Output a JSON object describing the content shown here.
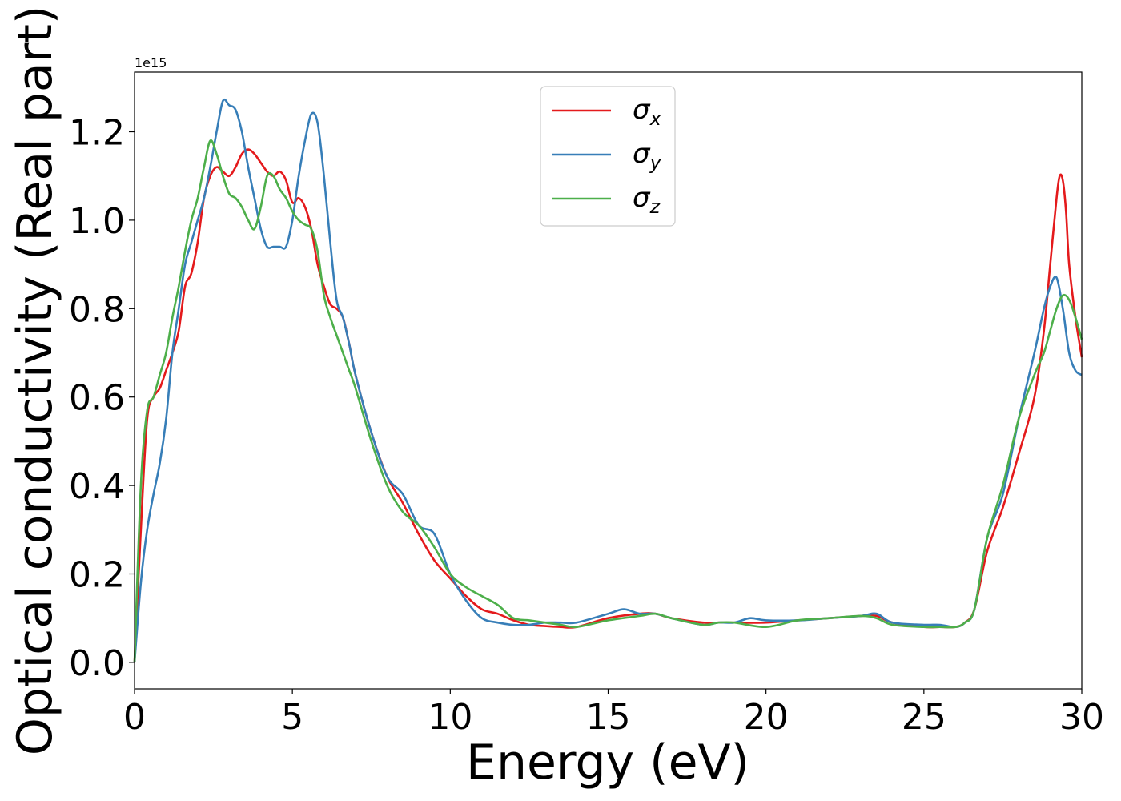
{
  "chart_data": {
    "type": "line",
    "title": "",
    "xlabel": "Energy (eV)",
    "ylabel": "Optical conductivity (Real part)",
    "y_offset_label": "1e15",
    "xlim": [
      0,
      30
    ],
    "ylim": [
      -0.06,
      1.335
    ],
    "x_ticks": [
      "0",
      "5",
      "10",
      "15",
      "20",
      "25",
      "30"
    ],
    "x_tick_values": [
      0,
      5,
      10,
      15,
      20,
      25,
      30
    ],
    "y_ticks": [
      "0.0",
      "0.2",
      "0.4",
      "0.6",
      "0.8",
      "1.0",
      "1.2"
    ],
    "y_tick_values": [
      0.0,
      0.2,
      0.4,
      0.6,
      0.8,
      1.0,
      1.2
    ],
    "grid": false,
    "legend_position": "top-center",
    "series": [
      {
        "name": "σ_x",
        "symbol": "σ",
        "sub": "x",
        "color": "#e41a1c",
        "x": [
          0,
          0.2,
          0.4,
          0.6,
          0.8,
          1.0,
          1.2,
          1.4,
          1.6,
          1.8,
          2.0,
          2.2,
          2.4,
          2.6,
          2.8,
          3.0,
          3.2,
          3.4,
          3.6,
          3.8,
          4.0,
          4.2,
          4.4,
          4.6,
          4.8,
          5.0,
          5.2,
          5.4,
          5.6,
          5.8,
          6.0,
          6.2,
          6.4,
          6.6,
          6.8,
          7.0,
          7.5,
          8.0,
          8.5,
          9.0,
          9.5,
          10.0,
          10.5,
          11.0,
          11.5,
          12.0,
          12.5,
          13.0,
          13.5,
          14.0,
          15.0,
          16.0,
          16.5,
          17.0,
          18.0,
          18.5,
          19.0,
          20.0,
          21.0,
          22.0,
          23.0,
          23.5,
          24.0,
          25.0,
          25.5,
          26.0,
          26.3,
          26.6,
          27.0,
          27.5,
          28.0,
          28.5,
          28.8,
          29.0,
          29.2,
          29.3,
          29.4,
          29.5,
          29.6,
          29.8,
          30.0
        ],
        "y": [
          0,
          0.3,
          0.55,
          0.6,
          0.62,
          0.66,
          0.7,
          0.75,
          0.85,
          0.88,
          0.95,
          1.05,
          1.1,
          1.12,
          1.11,
          1.1,
          1.12,
          1.15,
          1.16,
          1.15,
          1.13,
          1.11,
          1.1,
          1.11,
          1.09,
          1.04,
          1.05,
          1.03,
          0.98,
          0.9,
          0.85,
          0.81,
          0.8,
          0.78,
          0.72,
          0.65,
          0.52,
          0.42,
          0.36,
          0.29,
          0.23,
          0.19,
          0.15,
          0.12,
          0.11,
          0.095,
          0.085,
          0.082,
          0.08,
          0.08,
          0.1,
          0.11,
          0.11,
          0.1,
          0.09,
          0.09,
          0.09,
          0.09,
          0.095,
          0.1,
          0.105,
          0.105,
          0.09,
          0.08,
          0.08,
          0.08,
          0.09,
          0.12,
          0.25,
          0.35,
          0.47,
          0.6,
          0.75,
          0.9,
          1.05,
          1.1,
          1.09,
          1.02,
          0.9,
          0.78,
          0.69
        ]
      },
      {
        "name": "σ_y",
        "symbol": "σ",
        "sub": "y",
        "color": "#377eb8",
        "x": [
          0,
          0.2,
          0.4,
          0.6,
          0.8,
          1.0,
          1.2,
          1.4,
          1.6,
          1.8,
          2.0,
          2.2,
          2.4,
          2.6,
          2.8,
          3.0,
          3.2,
          3.4,
          3.6,
          3.8,
          4.0,
          4.2,
          4.4,
          4.6,
          4.8,
          5.0,
          5.2,
          5.4,
          5.6,
          5.8,
          6.0,
          6.2,
          6.4,
          6.6,
          6.8,
          7.0,
          7.5,
          8.0,
          8.5,
          9.0,
          9.5,
          10.0,
          10.5,
          11.0,
          11.5,
          12.0,
          12.5,
          13.0,
          13.5,
          14.0,
          15.0,
          15.5,
          16.0,
          16.5,
          17.0,
          18.0,
          18.5,
          19.0,
          19.5,
          20.0,
          21.0,
          22.0,
          23.0,
          23.5,
          24.0,
          25.0,
          25.5,
          26.0,
          26.3,
          26.6,
          27.0,
          27.5,
          28.0,
          28.5,
          28.8,
          29.0,
          29.2,
          29.4,
          29.6,
          29.8,
          30.0
        ],
        "y": [
          0,
          0.18,
          0.3,
          0.38,
          0.45,
          0.55,
          0.7,
          0.8,
          0.9,
          0.95,
          1.0,
          1.05,
          1.12,
          1.2,
          1.27,
          1.26,
          1.25,
          1.2,
          1.12,
          1.05,
          0.98,
          0.94,
          0.94,
          0.94,
          0.94,
          1.0,
          1.1,
          1.18,
          1.24,
          1.22,
          1.1,
          0.95,
          0.82,
          0.78,
          0.72,
          0.65,
          0.52,
          0.42,
          0.38,
          0.31,
          0.29,
          0.2,
          0.14,
          0.1,
          0.09,
          0.085,
          0.085,
          0.09,
          0.09,
          0.09,
          0.11,
          0.12,
          0.11,
          0.11,
          0.1,
          0.085,
          0.09,
          0.09,
          0.1,
          0.095,
          0.095,
          0.1,
          0.105,
          0.11,
          0.09,
          0.085,
          0.085,
          0.08,
          0.09,
          0.12,
          0.28,
          0.38,
          0.55,
          0.7,
          0.8,
          0.85,
          0.87,
          0.8,
          0.7,
          0.66,
          0.65
        ]
      },
      {
        "name": "σ_z",
        "symbol": "σ",
        "sub": "z",
        "color": "#4daf4a",
        "x": [
          0,
          0.2,
          0.4,
          0.6,
          0.8,
          1.0,
          1.2,
          1.4,
          1.6,
          1.8,
          2.0,
          2.2,
          2.4,
          2.6,
          2.8,
          3.0,
          3.2,
          3.4,
          3.6,
          3.8,
          4.0,
          4.2,
          4.4,
          4.6,
          4.8,
          5.0,
          5.2,
          5.4,
          5.6,
          5.8,
          6.0,
          6.2,
          6.4,
          6.6,
          6.8,
          7.0,
          7.5,
          8.0,
          8.5,
          9.0,
          9.5,
          10.0,
          10.5,
          11.0,
          11.5,
          12.0,
          12.5,
          13.0,
          13.5,
          14.0,
          15.0,
          16.0,
          16.5,
          17.0,
          18.0,
          18.5,
          19.0,
          20.0,
          21.0,
          22.0,
          23.0,
          23.5,
          24.0,
          25.0,
          25.5,
          26.0,
          26.3,
          26.6,
          27.0,
          27.5,
          28.0,
          28.5,
          28.8,
          29.0,
          29.2,
          29.4,
          29.6,
          29.8,
          30.0
        ],
        "y": [
          0,
          0.4,
          0.57,
          0.6,
          0.65,
          0.7,
          0.78,
          0.85,
          0.93,
          1.0,
          1.05,
          1.12,
          1.18,
          1.15,
          1.1,
          1.06,
          1.05,
          1.03,
          1.0,
          0.98,
          1.03,
          1.1,
          1.1,
          1.07,
          1.05,
          1.02,
          1.0,
          0.99,
          0.98,
          0.93,
          0.83,
          0.78,
          0.74,
          0.7,
          0.66,
          0.62,
          0.5,
          0.4,
          0.34,
          0.31,
          0.26,
          0.2,
          0.17,
          0.15,
          0.13,
          0.1,
          0.095,
          0.09,
          0.085,
          0.08,
          0.095,
          0.105,
          0.11,
          0.1,
          0.085,
          0.09,
          0.09,
          0.08,
          0.095,
          0.1,
          0.105,
          0.1,
          0.085,
          0.08,
          0.08,
          0.08,
          0.09,
          0.12,
          0.28,
          0.4,
          0.55,
          0.65,
          0.7,
          0.75,
          0.8,
          0.83,
          0.82,
          0.78,
          0.73
        ]
      }
    ]
  }
}
